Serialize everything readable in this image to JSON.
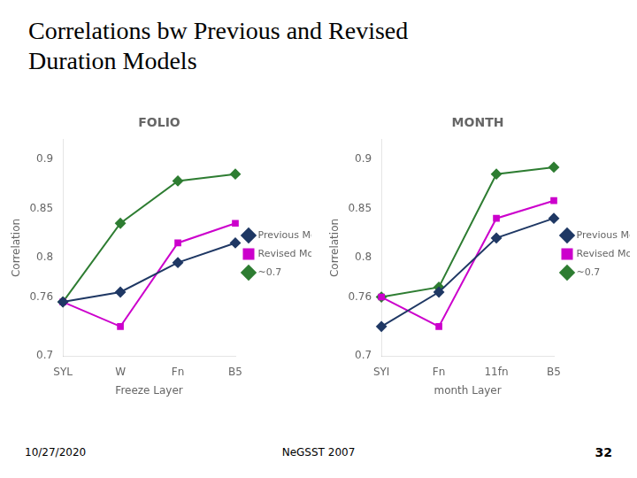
{
  "title": [
    "Correlations bw Previous and Revised",
    "Duration Models"
  ],
  "annotations": [
    "10/27/2020",
    "NeGSST 2007",
    "32"
  ],
  "chart_data": [
    {
      "type": "line",
      "title": "FOLIO",
      "xlabel": "Freeze Layer",
      "ylabel": "Correlation",
      "categories": [
        "SYL",
        "W",
        "Fn",
        "B5"
      ],
      "series": [
        {
          "name": "Previous Model",
          "color": "#1f3864",
          "marker": "diamond",
          "values": [
            0.755,
            0.765,
            0.795,
            0.815
          ]
        },
        {
          "name": "Revised Model",
          "color": "#cc00cc",
          "marker": "square",
          "values": [
            0.755,
            0.73,
            0.815,
            0.835
          ]
        },
        {
          "name": "~0.7",
          "color": "#2e7d32",
          "marker": "diamond",
          "values": [
            0.755,
            0.835,
            0.878,
            0.885
          ]
        }
      ],
      "ylim": [
        0.7,
        0.92
      ],
      "yticks": [
        0.7,
        0.76,
        0.8,
        0.85,
        0.9
      ],
      "grid": false,
      "legend": "right"
    },
    {
      "type": "line",
      "title": "MONTH",
      "xlabel": "month Layer",
      "ylabel": "Correlation",
      "categories": [
        "SYI",
        "Fn",
        "11fn",
        "B5"
      ],
      "series": [
        {
          "name": "Previous Model",
          "color": "#1f3864",
          "marker": "diamond",
          "values": [
            0.73,
            0.765,
            0.82,
            0.84
          ]
        },
        {
          "name": "Revised Model",
          "color": "#cc00cc",
          "marker": "square",
          "values": [
            0.76,
            0.73,
            0.84,
            0.858
          ]
        },
        {
          "name": "~0.7",
          "color": "#2e7d32",
          "marker": "diamond",
          "values": [
            0.76,
            0.77,
            0.885,
            0.892
          ]
        }
      ],
      "ylim": [
        0.7,
        0.92
      ],
      "yticks": [
        0.7,
        0.76,
        0.8,
        0.85,
        0.9
      ],
      "grid": false,
      "legend": "right"
    }
  ]
}
